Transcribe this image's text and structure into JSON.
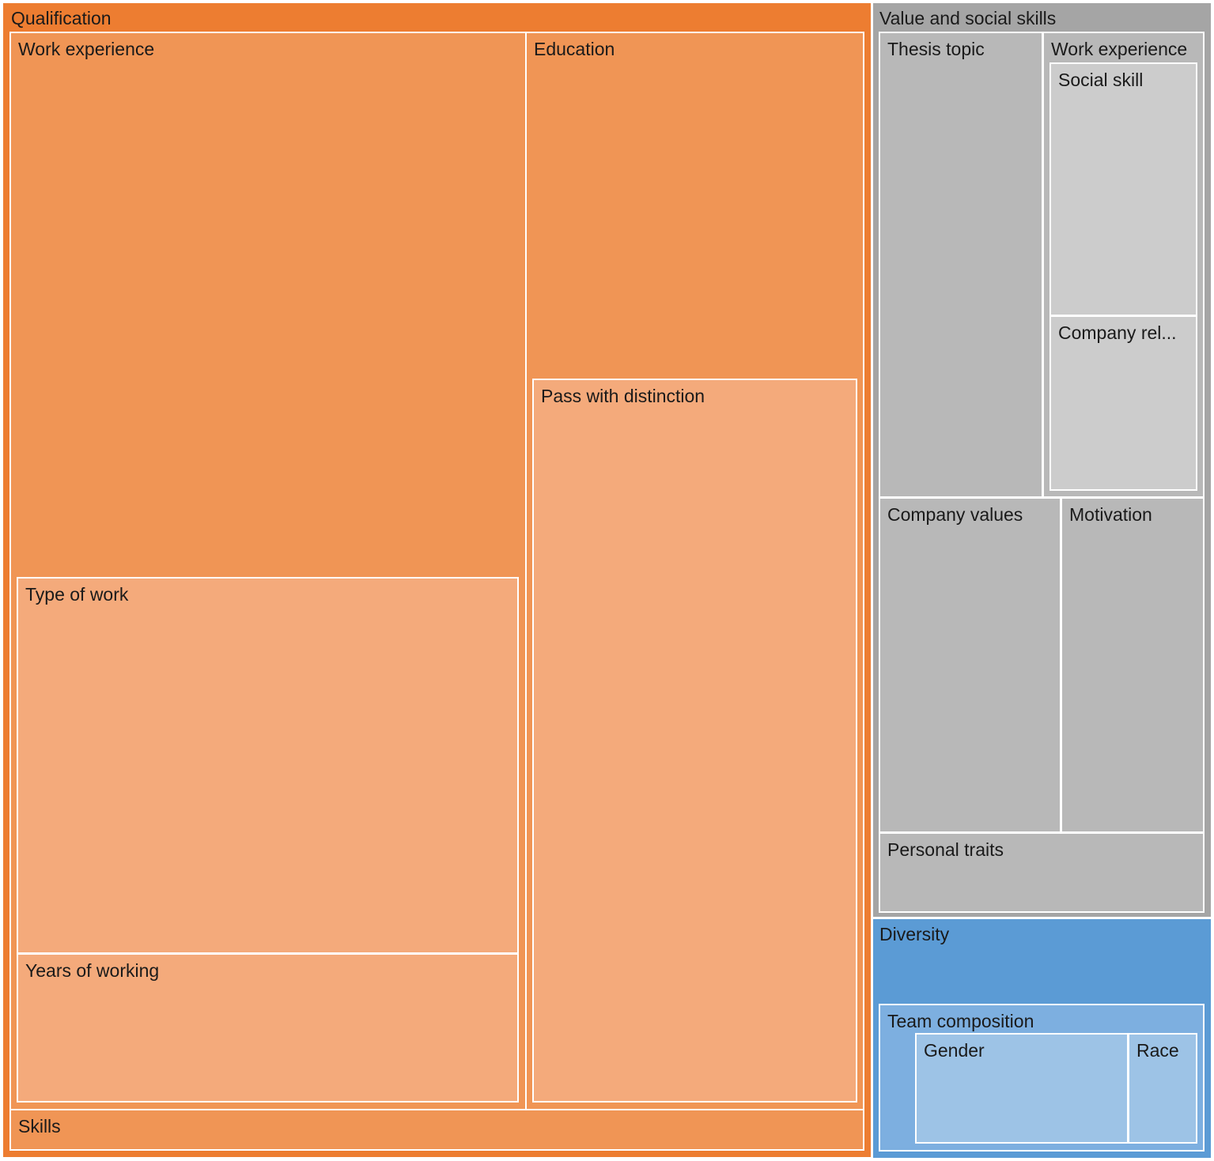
{
  "chart_data": {
    "type": "treemap",
    "nodes": [
      {
        "id": "qualification",
        "label": "Qualification",
        "parent": null,
        "color": "#ED7D31"
      },
      {
        "id": "q-work-experience",
        "label": "Work experience",
        "parent": "qualification",
        "color": "#F09555"
      },
      {
        "id": "type-of-work",
        "label": "Type of work",
        "parent": "q-work-experience",
        "color": "#F4AA7B"
      },
      {
        "id": "years-of-working",
        "label": "Years of working",
        "parent": "q-work-experience",
        "color": "#F4AA7B"
      },
      {
        "id": "education",
        "label": "Education",
        "parent": "qualification",
        "color": "#F09555"
      },
      {
        "id": "pass-with-distinction",
        "label": "Pass with distinction",
        "parent": "education",
        "color": "#F4AA7B"
      },
      {
        "id": "skills",
        "label": "Skills",
        "parent": "qualification",
        "color": "#F09555"
      },
      {
        "id": "value-social",
        "label": "Value and social skills",
        "parent": null,
        "color": "#A5A5A5"
      },
      {
        "id": "thesis-topic",
        "label": "Thesis topic",
        "parent": "value-social",
        "color": "#B8B8B8"
      },
      {
        "id": "v-work-experience",
        "label": "Work experience",
        "parent": "value-social",
        "color": "#B8B8B8"
      },
      {
        "id": "social-skill",
        "label": "Social skill",
        "parent": "v-work-experience",
        "color": "#CCCCCC"
      },
      {
        "id": "company-rel",
        "label": "Company rel...",
        "parent": "v-work-experience",
        "color": "#CCCCCC"
      },
      {
        "id": "company-values",
        "label": "Company values",
        "parent": "value-social",
        "color": "#B8B8B8"
      },
      {
        "id": "motivation",
        "label": "Motivation",
        "parent": "value-social",
        "color": "#B8B8B8"
      },
      {
        "id": "personal-traits",
        "label": "Personal traits",
        "parent": "value-social",
        "color": "#B8B8B8"
      },
      {
        "id": "diversity",
        "label": "Diversity",
        "parent": null,
        "color": "#5B9BD5"
      },
      {
        "id": "team-composition",
        "label": "Team composition",
        "parent": "diversity",
        "color": "#7DAFE0"
      },
      {
        "id": "gender",
        "label": "Gender",
        "parent": "team-composition",
        "color": "#9DC3E6"
      },
      {
        "id": "race",
        "label": "Race",
        "parent": "team-composition",
        "color": "#9DC3E6"
      }
    ]
  }
}
